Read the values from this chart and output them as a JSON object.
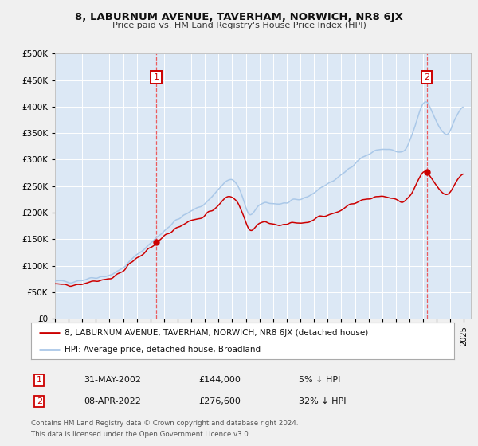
{
  "title": "8, LABURNUM AVENUE, TAVERHAM, NORWICH, NR8 6JX",
  "subtitle": "Price paid vs. HM Land Registry's House Price Index (HPI)",
  "legend_line1": "8, LABURNUM AVENUE, TAVERHAM, NORWICH, NR8 6JX (detached house)",
  "legend_line2": "HPI: Average price, detached house, Broadland",
  "footer1": "Contains HM Land Registry data © Crown copyright and database right 2024.",
  "footer2": "This data is licensed under the Open Government Licence v3.0.",
  "sale1_date": "31-MAY-2002",
  "sale1_price": 144000,
  "sale1_label": "5% ↓ HPI",
  "sale2_date": "08-APR-2022",
  "sale2_price": 276600,
  "sale2_label": "32% ↓ HPI",
  "hpi_color": "#aac8e8",
  "price_color": "#cc0000",
  "sale_dot_color": "#cc0000",
  "plot_bg_color": "#dce8f5",
  "fig_bg_color": "#f0f0f0",
  "grid_color": "#ffffff",
  "annotation_box_color": "#cc0000",
  "vline_color": "#ee4444",
  "ylim": [
    0,
    500000
  ],
  "yticks": [
    0,
    50000,
    100000,
    150000,
    200000,
    250000,
    300000,
    350000,
    400000,
    450000,
    500000
  ],
  "sale1_x": 2002.42,
  "sale2_x": 2022.27,
  "xlim_left": 1995.0,
  "xlim_right": 2025.5
}
